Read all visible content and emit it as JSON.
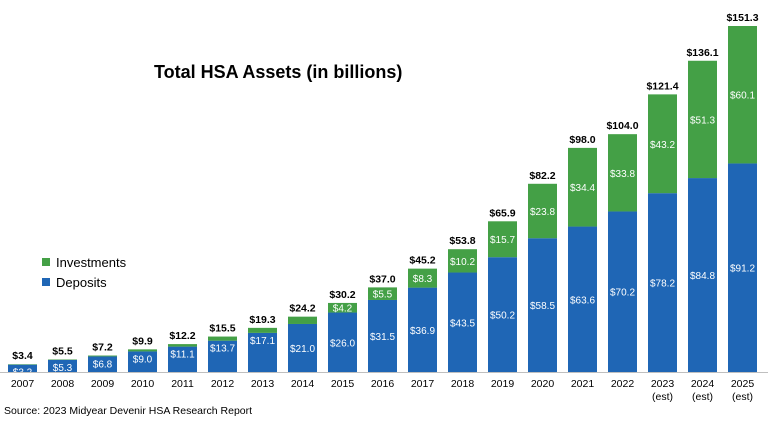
{
  "chart_data": {
    "type": "bar",
    "stacked": true,
    "title": "Total HSA Assets (in billions)",
    "categories": [
      "2007",
      "2008",
      "2009",
      "2010",
      "2011",
      "2012",
      "2013",
      "2014",
      "2015",
      "2016",
      "2017",
      "2018",
      "2019",
      "2020",
      "2021",
      "2022",
      "2023",
      "2024",
      "2025"
    ],
    "category_sublabels": [
      "",
      "",
      "",
      "",
      "",
      "",
      "",
      "",
      "",
      "",
      "",
      "",
      "",
      "",
      "",
      "",
      "(est)",
      "(est)",
      "(est)"
    ],
    "series": [
      {
        "name": "Deposits",
        "color": "#1f66b5",
        "values": [
          3.2,
          5.3,
          6.8,
          9.0,
          11.1,
          13.7,
          17.1,
          21.0,
          26.0,
          31.5,
          36.9,
          43.5,
          50.2,
          58.5,
          63.6,
          70.2,
          78.2,
          84.8,
          91.2
        ],
        "labels": [
          "$3.2",
          "$5.3",
          "$6.8",
          "$9.0",
          "$11.1",
          "$13.7",
          "$17.1",
          "$21.0",
          "$26.0",
          "$31.5",
          "$36.9",
          "$43.5",
          "$50.2",
          "$58.5",
          "$63.6",
          "$70.2",
          "$78.2",
          "$84.8",
          "$91.2"
        ]
      },
      {
        "name": "Investments",
        "color": "#44a046",
        "values": [
          0.2,
          0.2,
          0.4,
          0.9,
          1.1,
          1.8,
          2.2,
          3.2,
          4.2,
          5.5,
          8.3,
          10.2,
          15.7,
          23.8,
          34.4,
          33.8,
          43.2,
          51.3,
          60.1
        ],
        "labels": [
          "",
          "",
          "",
          "",
          "",
          "",
          "",
          "",
          "$4.2",
          "$5.5",
          "$8.3",
          "$10.2",
          "$15.7",
          "$23.8",
          "$34.4",
          "$33.8",
          "$43.2",
          "$51.3",
          "$60.1"
        ]
      }
    ],
    "totals": [
      3.4,
      5.5,
      7.2,
      9.9,
      12.2,
      15.5,
      19.3,
      24.2,
      30.2,
      37.0,
      45.2,
      53.8,
      65.9,
      82.2,
      98.0,
      104.0,
      121.4,
      136.1,
      151.3
    ],
    "total_labels": [
      "$3.4",
      "$5.5",
      "$7.2",
      "$9.9",
      "$12.2",
      "$15.5",
      "$19.3",
      "$24.2",
      "$30.2",
      "$37.0",
      "$45.2",
      "$53.8",
      "$65.9",
      "$82.2",
      "$98.0",
      "$104.0",
      "$121.4",
      "$136.1",
      "$151.3"
    ],
    "ylim": [
      0,
      151.3
    ],
    "grid": false,
    "legend_position": "left",
    "xlabel": "",
    "ylabel": ""
  },
  "legend": {
    "investments_label": "Investments",
    "deposits_label": "Deposits"
  },
  "source": "Source: 2023 Midyear Devenir HSA Research Report"
}
